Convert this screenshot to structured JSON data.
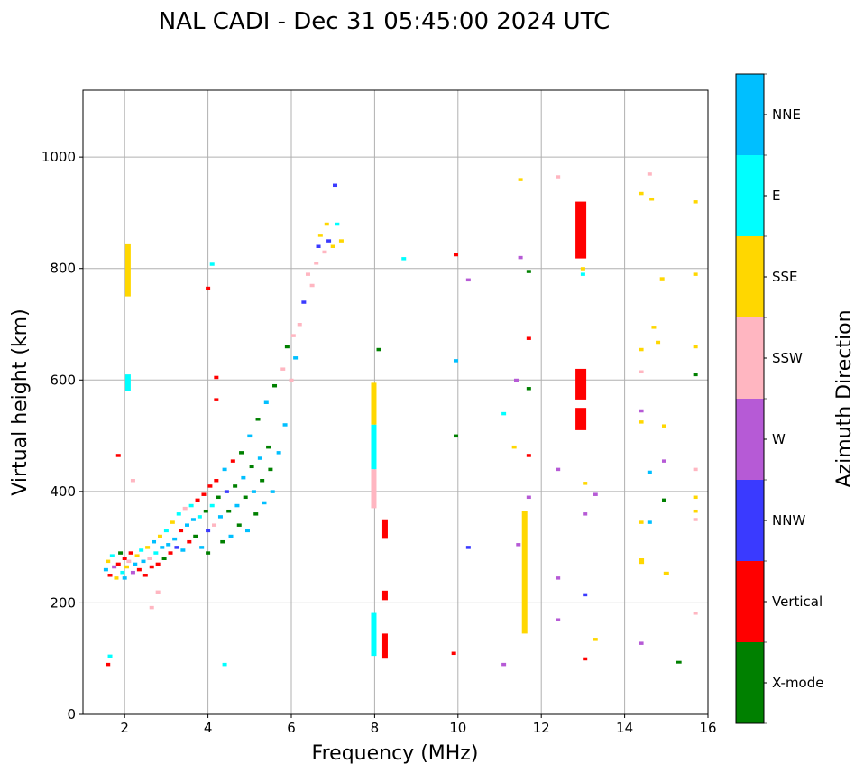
{
  "chart_data": {
    "type": "scatter",
    "title": "NAL CADI - Dec 31 05:45:00 2024 UTC",
    "xlabel": "Frequency (MHz)",
    "ylabel": "Virtual height (km)",
    "xlim": [
      1,
      16
    ],
    "ylim": [
      0,
      1120
    ],
    "xticks": [
      2,
      4,
      6,
      8,
      10,
      12,
      14,
      16
    ],
    "yticks": [
      0,
      200,
      400,
      600,
      800,
      1000
    ],
    "grid": true,
    "colorbar": {
      "label": "Azimuth Direction",
      "categories": [
        "X-mode",
        "Vertical",
        "NNW",
        "W",
        "SSW",
        "SSE",
        "E",
        "NNE"
      ],
      "colors": [
        "#008000",
        "#ff0000",
        "#3a3aff",
        "#b65ad6",
        "#ffb6c1",
        "#ffd700",
        "#00ffff",
        "#00bfff"
      ]
    },
    "points_format": "[frequency_MHz, height_km, category_index]",
    "points": [
      [
        1.55,
        260,
        7
      ],
      [
        1.6,
        275,
        5
      ],
      [
        1.65,
        250,
        1
      ],
      [
        1.7,
        285,
        6
      ],
      [
        1.75,
        265,
        3
      ],
      [
        1.8,
        245,
        5
      ],
      [
        1.85,
        270,
        1
      ],
      [
        1.9,
        290,
        0
      ],
      [
        1.95,
        255,
        6
      ],
      [
        2.0,
        280,
        1
      ],
      [
        2.0,
        245,
        7
      ],
      [
        2.05,
        265,
        5
      ],
      [
        2.1,
        275,
        4
      ],
      [
        2.15,
        290,
        1
      ],
      [
        2.2,
        255,
        3
      ],
      [
        2.25,
        270,
        7
      ],
      [
        2.3,
        285,
        5
      ],
      [
        2.35,
        260,
        1
      ],
      [
        2.4,
        295,
        6
      ],
      [
        2.45,
        275,
        7
      ],
      [
        2.5,
        250,
        1
      ],
      [
        2.55,
        300,
        5
      ],
      [
        2.6,
        280,
        4
      ],
      [
        2.65,
        265,
        1
      ],
      [
        2.7,
        310,
        7
      ],
      [
        2.75,
        290,
        6
      ],
      [
        2.8,
        270,
        1
      ],
      [
        2.85,
        320,
        5
      ],
      [
        2.9,
        300,
        7
      ],
      [
        2.95,
        280,
        0
      ],
      [
        3.0,
        330,
        6
      ],
      [
        3.05,
        305,
        7
      ],
      [
        3.1,
        290,
        1
      ],
      [
        3.15,
        345,
        5
      ],
      [
        3.2,
        315,
        7
      ],
      [
        3.25,
        300,
        2
      ],
      [
        3.3,
        360,
        6
      ],
      [
        3.35,
        330,
        1
      ],
      [
        3.4,
        295,
        7
      ],
      [
        3.45,
        370,
        4
      ],
      [
        3.5,
        340,
        7
      ],
      [
        3.55,
        310,
        1
      ],
      [
        3.6,
        375,
        6
      ],
      [
        3.65,
        350,
        7
      ],
      [
        3.7,
        320,
        0
      ],
      [
        3.75,
        385,
        1
      ],
      [
        3.8,
        355,
        6
      ],
      [
        3.85,
        300,
        7
      ],
      [
        3.9,
        395,
        1
      ],
      [
        3.95,
        365,
        0
      ],
      [
        4.0,
        330,
        2
      ],
      [
        4.0,
        290,
        0
      ],
      [
        4.05,
        410,
        1
      ],
      [
        4.1,
        375,
        6
      ],
      [
        4.15,
        340,
        4
      ],
      [
        4.2,
        420,
        1
      ],
      [
        4.25,
        390,
        0
      ],
      [
        4.3,
        355,
        7
      ],
      [
        4.35,
        310,
        0
      ],
      [
        4.4,
        440,
        7
      ],
      [
        4.45,
        400,
        2
      ],
      [
        4.5,
        365,
        0
      ],
      [
        4.55,
        320,
        7
      ],
      [
        4.6,
        455,
        1
      ],
      [
        4.65,
        410,
        0
      ],
      [
        4.7,
        375,
        7
      ],
      [
        4.75,
        340,
        0
      ],
      [
        4.8,
        470,
        0
      ],
      [
        4.85,
        425,
        7
      ],
      [
        4.9,
        390,
        0
      ],
      [
        4.95,
        330,
        7
      ],
      [
        5.0,
        500,
        7
      ],
      [
        5.05,
        445,
        0
      ],
      [
        5.1,
        400,
        7
      ],
      [
        5.15,
        360,
        0
      ],
      [
        5.2,
        530,
        0
      ],
      [
        5.25,
        460,
        7
      ],
      [
        5.3,
        420,
        0
      ],
      [
        5.35,
        380,
        7
      ],
      [
        5.4,
        560,
        7
      ],
      [
        5.45,
        480,
        0
      ],
      [
        5.5,
        440,
        0
      ],
      [
        5.55,
        400,
        7
      ],
      [
        5.6,
        590,
        0
      ],
      [
        5.7,
        470,
        7
      ],
      [
        5.8,
        620,
        4
      ],
      [
        5.85,
        520,
        7
      ],
      [
        5.9,
        660,
        0
      ],
      [
        6.0,
        600,
        4
      ],
      [
        6.05,
        680,
        4
      ],
      [
        6.1,
        640,
        7
      ],
      [
        6.2,
        700,
        4
      ],
      [
        6.3,
        740,
        2
      ],
      [
        6.4,
        790,
        4
      ],
      [
        6.5,
        770,
        4
      ],
      [
        6.6,
        810,
        4
      ],
      [
        6.65,
        840,
        2
      ],
      [
        6.7,
        860,
        5
      ],
      [
        6.8,
        830,
        4
      ],
      [
        6.85,
        880,
        5
      ],
      [
        6.9,
        850,
        2
      ],
      [
        7.0,
        840,
        5
      ],
      [
        7.1,
        880,
        6
      ],
      [
        7.2,
        850,
        5
      ],
      [
        7.05,
        950,
        2
      ],
      [
        4.2,
        605,
        1
      ],
      [
        4.2,
        565,
        1
      ],
      [
        4.0,
        765,
        1
      ],
      [
        4.1,
        808,
        6
      ],
      [
        1.65,
        105,
        6
      ],
      [
        1.6,
        90,
        1
      ],
      [
        2.8,
        220,
        4
      ],
      [
        2.65,
        192,
        4
      ],
      [
        4.4,
        90,
        6
      ],
      [
        2.2,
        420,
        4
      ],
      [
        1.85,
        465,
        1
      ],
      [
        8.1,
        655,
        0
      ],
      [
        8.7,
        818,
        6
      ],
      [
        9.95,
        825,
        1
      ],
      [
        9.95,
        635,
        7
      ],
      [
        9.95,
        500,
        0
      ],
      [
        9.9,
        110,
        1
      ],
      [
        10.25,
        780,
        3
      ],
      [
        10.25,
        300,
        2
      ],
      [
        11.1,
        90,
        3
      ],
      [
        11.1,
        540,
        6
      ],
      [
        11.35,
        480,
        5
      ],
      [
        11.4,
        600,
        3
      ],
      [
        11.45,
        305,
        3
      ],
      [
        11.5,
        960,
        5
      ],
      [
        11.5,
        820,
        3
      ],
      [
        11.7,
        795,
        0
      ],
      [
        11.7,
        585,
        0
      ],
      [
        11.7,
        675,
        1
      ],
      [
        11.7,
        465,
        1
      ],
      [
        11.7,
        390,
        3
      ],
      [
        12.4,
        965,
        4
      ],
      [
        12.4,
        440,
        3
      ],
      [
        12.4,
        245,
        3
      ],
      [
        12.4,
        170,
        3
      ],
      [
        13.0,
        800,
        5
      ],
      [
        13.0,
        790,
        6
      ],
      [
        13.05,
        415,
        5
      ],
      [
        13.05,
        360,
        3
      ],
      [
        13.05,
        215,
        2
      ],
      [
        13.05,
        100,
        1
      ],
      [
        13.3,
        395,
        3
      ],
      [
        13.3,
        135,
        5
      ],
      [
        14.4,
        935,
        5
      ],
      [
        14.4,
        655,
        5
      ],
      [
        14.4,
        615,
        4
      ],
      [
        14.4,
        545,
        3
      ],
      [
        14.4,
        525,
        5
      ],
      [
        14.4,
        345,
        5
      ],
      [
        14.4,
        128,
        3
      ],
      [
        14.6,
        970,
        4
      ],
      [
        14.65,
        925,
        5
      ],
      [
        14.7,
        695,
        5
      ],
      [
        14.8,
        668,
        5
      ],
      [
        14.6,
        435,
        7
      ],
      [
        14.6,
        345,
        7
      ],
      [
        14.9,
        782,
        5
      ],
      [
        14.95,
        518,
        5
      ],
      [
        14.95,
        455,
        3
      ],
      [
        14.95,
        385,
        0
      ],
      [
        15.7,
        920,
        5
      ],
      [
        15.7,
        790,
        5
      ],
      [
        15.7,
        660,
        5
      ],
      [
        15.7,
        610,
        0
      ],
      [
        15.7,
        440,
        4
      ],
      [
        15.7,
        390,
        5
      ],
      [
        15.7,
        365,
        5
      ],
      [
        15.7,
        350,
        4
      ],
      [
        15.7,
        182,
        4
      ]
    ],
    "bars_format": "[frequency_MHz, height_start_km, height_end_km, category_index]",
    "bars": [
      [
        2.08,
        750,
        845,
        5
      ],
      [
        2.08,
        580,
        610,
        6
      ],
      [
        7.98,
        370,
        440,
        4
      ],
      [
        7.98,
        440,
        520,
        6
      ],
      [
        7.98,
        520,
        595,
        5
      ],
      [
        7.98,
        105,
        182,
        6
      ],
      [
        8.25,
        100,
        145,
        1
      ],
      [
        8.25,
        315,
        350,
        1
      ],
      [
        8.25,
        205,
        222,
        1
      ],
      [
        11.6,
        145,
        365,
        5
      ],
      [
        12.95,
        818,
        920,
        1
      ],
      [
        12.95,
        565,
        620,
        1
      ],
      [
        12.95,
        510,
        550,
        1
      ],
      [
        14.4,
        270,
        280,
        5
      ],
      [
        15.0,
        250,
        256,
        5
      ],
      [
        15.3,
        92,
        96,
        0
      ]
    ]
  }
}
